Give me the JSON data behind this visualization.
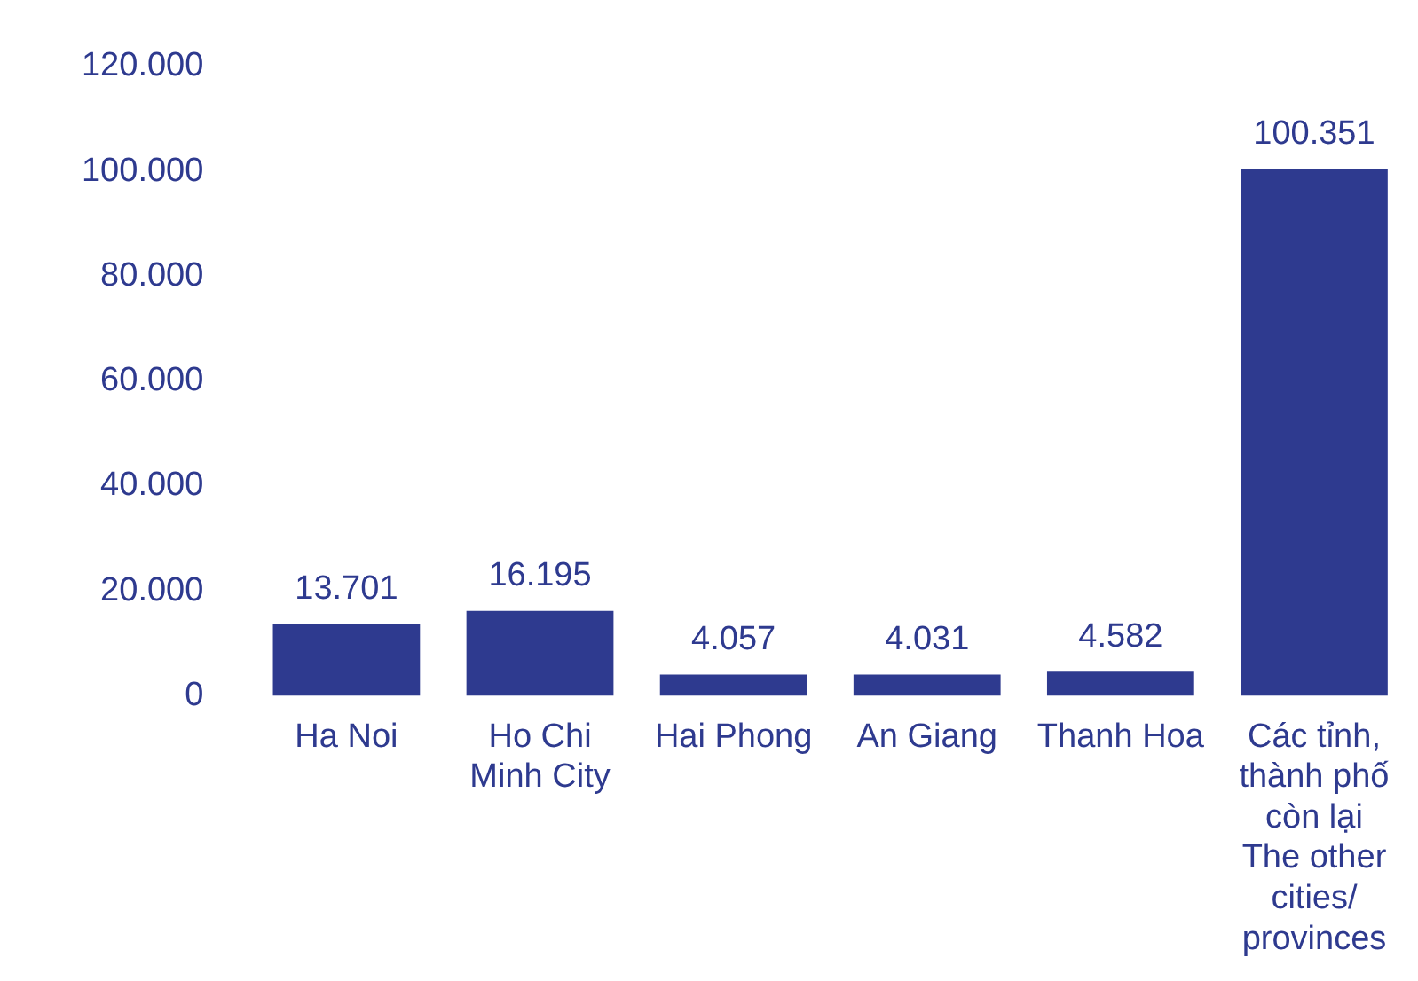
{
  "chart_data": {
    "type": "bar",
    "categories": [
      "Ha Noi",
      "Ho Chi Minh City",
      "Hai Phong",
      "An Giang",
      "Thanh Hoa",
      "Các tỉnh, thành phố còn lại The other cities/ provinces"
    ],
    "values": [
      13701,
      16195,
      4057,
      4031,
      4582,
      100351
    ],
    "value_labels": [
      "13.701",
      "16.195",
      "4.057",
      "4.031",
      "4.582",
      "100.351"
    ],
    "color": "#2e3a8f",
    "ylim": [
      0,
      120000
    ],
    "yticks": [
      0,
      {
        "value": 20000,
        "label": "20.000"
      },
      {
        "value": 40000,
        "label": "40.000"
      },
      {
        "value": 60000,
        "label": "60.000"
      },
      {
        "value": 80000,
        "label": "80.000"
      },
      {
        "value": 100000,
        "label": "100.000"
      },
      {
        "value": 120000,
        "label": "120.000"
      }
    ],
    "grid": false,
    "legend": false
  }
}
